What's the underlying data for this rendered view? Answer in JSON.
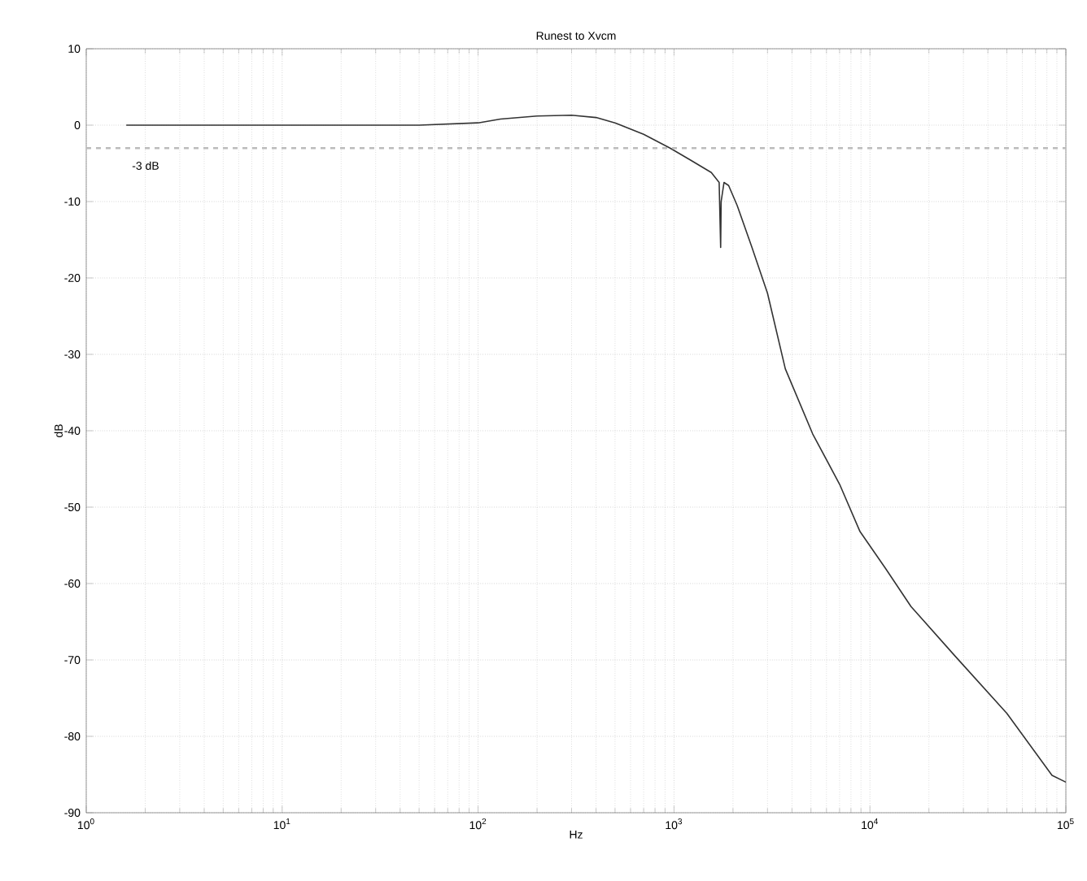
{
  "chart_data": {
    "type": "line",
    "title": "Runest to Xvcm",
    "xlabel": "Hz",
    "ylabel": "dB",
    "log": "x",
    "grid": true,
    "xlim": [
      1,
      100000
    ],
    "xticks": [
      {
        "value": 1,
        "label": "10$^{0}$"
      },
      {
        "value": 10,
        "label": "10$^{1}$"
      },
      {
        "value": 100,
        "label": "10$^{2}$"
      },
      {
        "value": 1000,
        "label": "10$^{3}$"
      },
      {
        "value": 10000,
        "label": "10$^{4}$"
      },
      {
        "value": 100000,
        "label": "10$^{5}$"
      }
    ],
    "ylim": [
      -90,
      10
    ],
    "yticks": [
      -90,
      -80,
      -70,
      -60,
      -50,
      -40,
      -30,
      -20,
      -10,
      0,
      10
    ],
    "ref_lines": [
      {
        "axis": "y",
        "value": -3,
        "label": "-3 dB",
        "color": "#bbbbbb",
        "line_style": "dashed"
      }
    ],
    "series": [
      {
        "color": "#333333",
        "x": [
          1.6,
          10,
          50,
          100,
          130,
          200,
          300,
          400,
          500,
          700,
          955,
          1200,
          1550,
          1700,
          1730,
          1740,
          1800,
          1900,
          2100,
          2500,
          3000,
          3700,
          5100,
          7000,
          8900,
          12000,
          16200,
          27000,
          50000,
          85000,
          100000
        ],
        "values": [
          0,
          0,
          0,
          0.3,
          0.8,
          1.2,
          1.3,
          1.0,
          0.3,
          -1.2,
          -3,
          -4.5,
          -6.2,
          -7.5,
          -16,
          -10,
          -7.5,
          -7.9,
          -10.5,
          -16,
          -22,
          -31.9,
          -40.4,
          -47,
          -53.2,
          -58,
          -63,
          -69.4,
          -77,
          -85.1,
          -86
        ]
      }
    ]
  }
}
